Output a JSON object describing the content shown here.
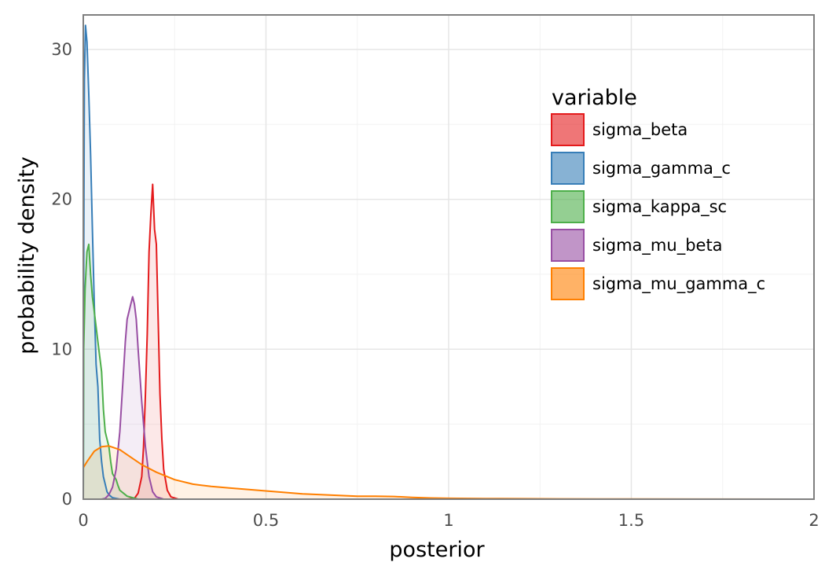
{
  "chart_data": {
    "type": "area",
    "xlabel": "posterior",
    "ylabel": "probability density",
    "xlim": [
      0,
      2
    ],
    "ylim": [
      0,
      32.3
    ],
    "x_ticks": [
      0,
      0.5,
      1,
      1.5,
      2
    ],
    "x_tick_labels": [
      "0",
      "0.5",
      "1",
      "1.5",
      "2"
    ],
    "y_ticks": [
      0,
      10,
      20,
      30
    ],
    "y_tick_labels": [
      "0",
      "10",
      "20",
      "30"
    ],
    "grid": true,
    "legend": {
      "title": "variable",
      "placement": "top-right"
    },
    "series": [
      {
        "name": "sigma_beta",
        "color": "#e41a1c",
        "fill": "#e41a1c",
        "points": [
          [
            0.12,
            0
          ],
          [
            0.14,
            0.05
          ],
          [
            0.15,
            0.4
          ],
          [
            0.16,
            1.5
          ],
          [
            0.165,
            3.5
          ],
          [
            0.17,
            7
          ],
          [
            0.175,
            11
          ],
          [
            0.18,
            16.5
          ],
          [
            0.185,
            19
          ],
          [
            0.19,
            21
          ],
          [
            0.195,
            18
          ],
          [
            0.2,
            17
          ],
          [
            0.205,
            12
          ],
          [
            0.21,
            7
          ],
          [
            0.215,
            4
          ],
          [
            0.22,
            2
          ],
          [
            0.23,
            0.6
          ],
          [
            0.24,
            0.15
          ],
          [
            0.26,
            0
          ]
        ]
      },
      {
        "name": "sigma_gamma_c",
        "color": "#377eb8",
        "fill": "#377eb8",
        "points": [
          [
            0,
            0
          ],
          [
            0.001,
            15
          ],
          [
            0.003,
            28
          ],
          [
            0.006,
            31.6
          ],
          [
            0.01,
            30.5
          ],
          [
            0.015,
            27
          ],
          [
            0.02,
            23
          ],
          [
            0.025,
            18
          ],
          [
            0.03,
            13
          ],
          [
            0.035,
            9
          ],
          [
            0.04,
            7.5
          ],
          [
            0.045,
            4
          ],
          [
            0.05,
            2.5
          ],
          [
            0.055,
            1.5
          ],
          [
            0.06,
            1
          ],
          [
            0.065,
            0.5
          ],
          [
            0.07,
            0.3
          ],
          [
            0.08,
            0.1
          ],
          [
            0.1,
            0
          ]
        ]
      },
      {
        "name": "sigma_kappa_sc",
        "color": "#4daf4a",
        "fill": "#4daf4a",
        "points": [
          [
            0,
            0
          ],
          [
            0.001,
            10
          ],
          [
            0.005,
            14
          ],
          [
            0.01,
            16.5
          ],
          [
            0.015,
            17
          ],
          [
            0.02,
            15
          ],
          [
            0.025,
            13.5
          ],
          [
            0.03,
            12.5
          ],
          [
            0.04,
            10.5
          ],
          [
            0.05,
            8.5
          ],
          [
            0.055,
            6
          ],
          [
            0.06,
            4.5
          ],
          [
            0.065,
            4
          ],
          [
            0.07,
            3.5
          ],
          [
            0.075,
            2.5
          ],
          [
            0.08,
            1.7
          ],
          [
            0.09,
            1.3
          ],
          [
            0.095,
            0.9
          ],
          [
            0.1,
            0.6
          ],
          [
            0.12,
            0.2
          ],
          [
            0.15,
            0
          ]
        ]
      },
      {
        "name": "sigma_mu_beta",
        "color": "#984ea3",
        "fill": "#984ea3",
        "points": [
          [
            0.05,
            0
          ],
          [
            0.06,
            0.05
          ],
          [
            0.07,
            0.3
          ],
          [
            0.08,
            0.8
          ],
          [
            0.09,
            2
          ],
          [
            0.1,
            4.5
          ],
          [
            0.11,
            8.5
          ],
          [
            0.115,
            10.5
          ],
          [
            0.12,
            12
          ],
          [
            0.125,
            12.5
          ],
          [
            0.13,
            13
          ],
          [
            0.135,
            13.5
          ],
          [
            0.14,
            13
          ],
          [
            0.145,
            12
          ],
          [
            0.15,
            10
          ],
          [
            0.16,
            6.5
          ],
          [
            0.17,
            3.5
          ],
          [
            0.18,
            1.5
          ],
          [
            0.19,
            0.5
          ],
          [
            0.2,
            0.15
          ],
          [
            0.22,
            0
          ]
        ]
      },
      {
        "name": "sigma_mu_gamma_c",
        "color": "#ff7f00",
        "fill": "#ff7f00",
        "points": [
          [
            0,
            2.1
          ],
          [
            0.01,
            2.5
          ],
          [
            0.03,
            3.2
          ],
          [
            0.05,
            3.5
          ],
          [
            0.07,
            3.55
          ],
          [
            0.1,
            3.3
          ],
          [
            0.13,
            2.8
          ],
          [
            0.16,
            2.3
          ],
          [
            0.2,
            1.8
          ],
          [
            0.25,
            1.3
          ],
          [
            0.3,
            1.0
          ],
          [
            0.35,
            0.85
          ],
          [
            0.4,
            0.75
          ],
          [
            0.45,
            0.65
          ],
          [
            0.5,
            0.55
          ],
          [
            0.55,
            0.45
          ],
          [
            0.6,
            0.35
          ],
          [
            0.65,
            0.3
          ],
          [
            0.7,
            0.25
          ],
          [
            0.75,
            0.2
          ],
          [
            0.8,
            0.2
          ],
          [
            0.85,
            0.18
          ],
          [
            0.9,
            0.12
          ],
          [
            0.95,
            0.08
          ],
          [
            1.0,
            0.06
          ],
          [
            1.1,
            0.04
          ],
          [
            1.2,
            0.03
          ],
          [
            1.3,
            0.02
          ],
          [
            1.5,
            0.01
          ],
          [
            1.7,
            0.005
          ],
          [
            2.0,
            0.002
          ]
        ]
      }
    ]
  }
}
